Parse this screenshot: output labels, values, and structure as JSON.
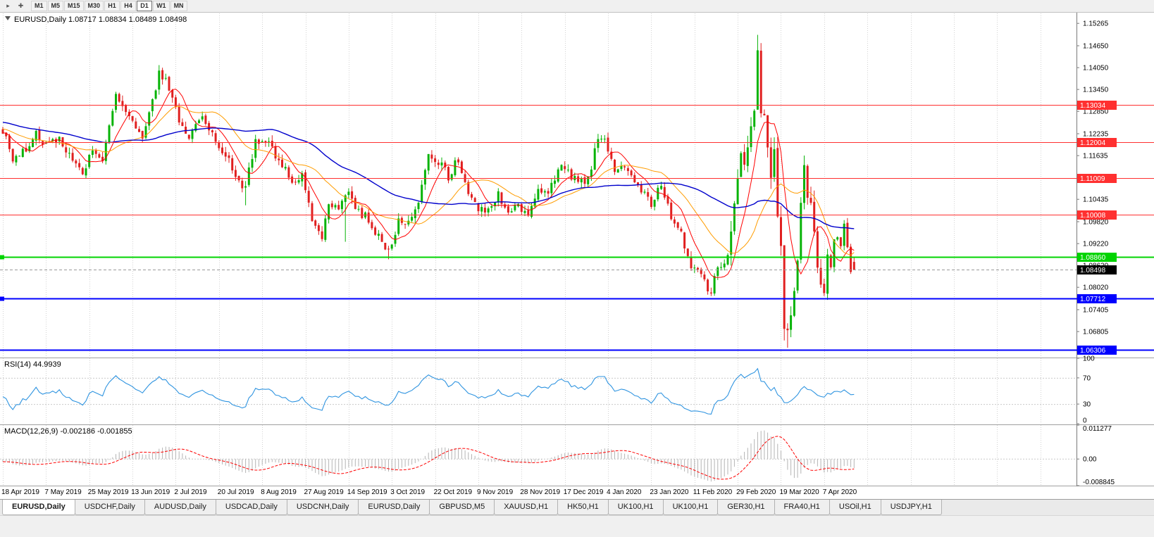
{
  "toolbar": {
    "icons": [
      {
        "name": "pointer-icon",
        "glyph": "▸"
      },
      {
        "name": "crosshair-icon",
        "glyph": "✚"
      }
    ],
    "timeframes": [
      "M1",
      "M5",
      "M15",
      "M30",
      "H1",
      "H4",
      "D1",
      "W1",
      "MN"
    ],
    "active_timeframe": "D1"
  },
  "chart": {
    "title": "EURUSD,Daily",
    "ohlc": "1.08717 1.08834 1.08489 1.08498"
  },
  "chart_data": {
    "type": "candlestick",
    "symbol": "EURUSD",
    "timeframe": "Daily",
    "last_ohlc": {
      "open": 1.08717,
      "high": 1.08834,
      "low": 1.08489,
      "close": 1.08498
    },
    "num_candles": 257,
    "y_ticks": [
      "1.15265",
      "1.14650",
      "1.14050",
      "1.13450",
      "1.12850",
      "1.12235",
      "1.11635",
      "1.10435",
      "1.09820",
      "1.09220",
      "1.08620",
      "1.08020",
      "1.07405",
      "1.06805"
    ],
    "x_labels": [
      "18 Apr 2019",
      "7 May 2019",
      "25 May 2019",
      "13 Jun 2019",
      "2 Jul 2019",
      "20 Jul 2019",
      "8 Aug 2019",
      "27 Aug 2019",
      "14 Sep 2019",
      "3 Oct 2019",
      "22 Oct 2019",
      "9 Nov 2019",
      "28 Nov 2019",
      "17 Dec 2019",
      "4 Jan 2020",
      "23 Jan 2020",
      "11 Feb 2020",
      "29 Feb 2020",
      "19 Mar 2020",
      "7 Apr 2020"
    ],
    "price_anchors": [
      [
        0,
        1.1235
      ],
      [
        3,
        1.115
      ],
      [
        6,
        1.1175
      ],
      [
        10,
        1.122
      ],
      [
        13,
        1.1195
      ],
      [
        17,
        1.121
      ],
      [
        20,
        1.116
      ],
      [
        24,
        1.111
      ],
      [
        27,
        1.1185
      ],
      [
        30,
        1.114
      ],
      [
        32,
        1.124
      ],
      [
        34,
        1.133
      ],
      [
        36,
        1.129
      ],
      [
        39,
        1.127
      ],
      [
        42,
        1.12
      ],
      [
        44,
        1.127
      ],
      [
        47,
        1.139
      ],
      [
        49,
        1.137
      ],
      [
        52,
        1.1285
      ],
      [
        56,
        1.121
      ],
      [
        60,
        1.127
      ],
      [
        63,
        1.1215
      ],
      [
        68,
        1.115
      ],
      [
        72,
        1.1075
      ],
      [
        73,
        1.1085
      ],
      [
        76,
        1.1205
      ],
      [
        80,
        1.1195
      ],
      [
        84,
        1.1135
      ],
      [
        88,
        1.109
      ],
      [
        90,
        1.1105
      ],
      [
        93,
        1.0985
      ],
      [
        96,
        1.094
      ],
      [
        98,
        1.1035
      ],
      [
        101,
        1.1025
      ],
      [
        104,
        1.107
      ],
      [
        107,
        1.1005
      ],
      [
        110,
        1.099
      ],
      [
        113,
        1.094
      ],
      [
        116,
        1.0895
      ],
      [
        119,
        1.098
      ],
      [
        122,
        1.099
      ],
      [
        125,
        1.1035
      ],
      [
        128,
        1.116
      ],
      [
        131,
        1.115
      ],
      [
        134,
        1.1105
      ],
      [
        137,
        1.1155
      ],
      [
        140,
        1.107
      ],
      [
        143,
        1.102
      ],
      [
        146,
        1.101
      ],
      [
        149,
        1.106
      ],
      [
        152,
        1.101
      ],
      [
        155,
        1.102
      ],
      [
        158,
        1.1
      ],
      [
        161,
        1.108
      ],
      [
        164,
        1.1055
      ],
      [
        167,
        1.113
      ],
      [
        170,
        1.112
      ],
      [
        173,
        1.1085
      ],
      [
        176,
        1.1095
      ],
      [
        179,
        1.122
      ],
      [
        181,
        1.12
      ],
      [
        184,
        1.112
      ],
      [
        187,
        1.1135
      ],
      [
        190,
        1.1095
      ],
      [
        193,
        1.1055
      ],
      [
        195,
        1.1025
      ],
      [
        198,
        1.1085
      ],
      [
        201,
        1.1
      ],
      [
        204,
        1.0945
      ],
      [
        207,
        1.0865
      ],
      [
        210,
        1.0835
      ],
      [
        213,
        1.0785
      ],
      [
        215,
        1.0855
      ],
      [
        218,
        1.088
      ],
      [
        220,
        1.103
      ],
      [
        222,
        1.117
      ],
      [
        223,
        1.1135
      ],
      [
        225,
        1.124
      ],
      [
        226,
        1.129
      ],
      [
        227,
        1.1455
      ],
      [
        228,
        1.128
      ],
      [
        229,
        1.127
      ],
      [
        230,
        1.1185
      ],
      [
        231,
        1.1105
      ],
      [
        232,
        1.118
      ],
      [
        233,
        1.0995
      ],
      [
        234,
        1.0915
      ],
      [
        235,
        1.069
      ],
      [
        236,
        1.0685
      ],
      [
        237,
        1.0725
      ],
      [
        238,
        1.079
      ],
      [
        239,
        1.088
      ],
      [
        240,
        1.103
      ],
      [
        241,
        1.114
      ],
      [
        242,
        1.1045
      ],
      [
        243,
        1.103
      ],
      [
        244,
        1.096
      ],
      [
        245,
        1.086
      ],
      [
        246,
        1.081
      ],
      [
        247,
        1.079
      ],
      [
        248,
        1.089
      ],
      [
        249,
        1.0855
      ],
      [
        250,
        1.093
      ],
      [
        251,
        1.0935
      ],
      [
        252,
        1.0915
      ],
      [
        253,
        1.098
      ],
      [
        254,
        1.091
      ],
      [
        255,
        1.084
      ],
      [
        256,
        1.08498
      ]
    ],
    "wick_overrides": [
      {
        "i": 47,
        "high": 1.1412
      },
      {
        "i": 73,
        "low": 1.1027
      },
      {
        "i": 103,
        "low": 1.0927
      },
      {
        "i": 116,
        "low": 1.0879
      },
      {
        "i": 213,
        "low": 1.0778
      },
      {
        "i": 227,
        "high": 1.1495
      },
      {
        "i": 235,
        "low": 1.0656
      },
      {
        "i": 236,
        "low": 1.0636
      }
    ],
    "moving_averages": [
      {
        "period": 8,
        "color": "#ff0000",
        "width": 1
      },
      {
        "period": 21,
        "color": "#ff9c00",
        "width": 1
      },
      {
        "period": 50,
        "color": "#0000cc",
        "width": 1.4
      }
    ],
    "hlines": [
      {
        "price": 1.13034,
        "label": "1.13034",
        "color": "#ff3030",
        "width": 1,
        "badge": true
      },
      {
        "price": 1.12004,
        "label": "1.12004",
        "color": "#ff3030",
        "width": 1,
        "badge": true
      },
      {
        "price": 1.11009,
        "label": "1.11009",
        "color": "#ff3030",
        "width": 1,
        "badge": true
      },
      {
        "price": 1.10008,
        "label": "1.10008",
        "color": "#ff3030",
        "width": 1,
        "badge": true
      },
      {
        "price": 1.0886,
        "label": "1.08860",
        "color": "#00d400",
        "width": 2,
        "badge": true,
        "left_marker": true
      },
      {
        "price": 1.07712,
        "label": "1.07712",
        "color": "#0000ff",
        "width": 2,
        "badge": true,
        "left_marker": true
      },
      {
        "price": 1.06306,
        "label": "1.06306",
        "color": "#0000ff",
        "width": 2,
        "badge": true
      }
    ],
    "current_price": {
      "value": 1.08498,
      "label": "1.08498"
    },
    "rsi": {
      "label": "RSI(14)",
      "value": "44.9939",
      "period": 14,
      "color": "#2f94e0",
      "ticks": [
        "100",
        "70",
        "30",
        "0"
      ],
      "levels": [
        70,
        30
      ]
    },
    "macd": {
      "label": "MACD(12,26,9)",
      "values": "-0.002186 -0.001855",
      "fast": 12,
      "slow": 26,
      "signal": 9,
      "hist_color": "#b4b4b4",
      "signal_color": "#ff0000",
      "ticks": [
        "0.011277",
        "0.00",
        "-0.008845"
      ],
      "range": [
        -0.008845,
        0.011277
      ]
    }
  },
  "colors": {
    "candle_up": "#07b307",
    "candle_down": "#e02020",
    "grid": "#d2d2d2",
    "axis_border": "#7a7a7a",
    "separator": "#a0a0a0",
    "current_price_line": "#9a9a9a",
    "current_price_badge": "#000000"
  },
  "tabs": [
    {
      "label": "EURUSD,Daily",
      "active": true
    },
    {
      "label": "USDCHF,Daily",
      "active": false
    },
    {
      "label": "AUDUSD,Daily",
      "active": false
    },
    {
      "label": "USDCAD,Daily",
      "active": false
    },
    {
      "label": "USDCNH,Daily",
      "active": false
    },
    {
      "label": "EURUSD,Daily",
      "active": false
    },
    {
      "label": "GBPUSD,M5",
      "active": false
    },
    {
      "label": "XAUUSD,H1",
      "active": false
    },
    {
      "label": "HK50,H1",
      "active": false
    },
    {
      "label": "UK100,H1",
      "active": false
    },
    {
      "label": "UK100,H1",
      "active": false
    },
    {
      "label": "GER30,H1",
      "active": false
    },
    {
      "label": "FRA40,H1",
      "active": false
    },
    {
      "label": "USOil,H1",
      "active": false
    },
    {
      "label": "USDJPY,H1",
      "active": false
    }
  ]
}
